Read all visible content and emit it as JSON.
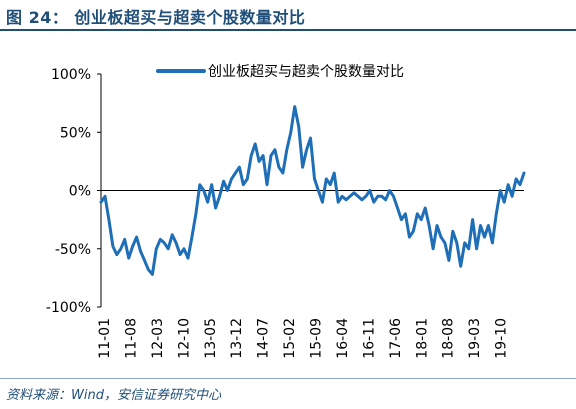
{
  "figure": {
    "title": "图 24：  创业板超买与超卖个股数量对比",
    "source": "资料来源：Wind，安信证券研究中心"
  },
  "colors": {
    "series": "#1f6fb8",
    "axis": "#000000",
    "title": "#1f4e79"
  },
  "chart_data": {
    "type": "line",
    "title": "",
    "xlabel": "",
    "ylabel": "",
    "ylim": [
      -100,
      100
    ],
    "yticks": [
      100,
      50,
      0,
      -50,
      -100
    ],
    "ytick_labels": [
      "100%",
      "50%",
      "0%",
      "-50%",
      "-100%"
    ],
    "xticks": [
      "11-01",
      "11-08",
      "12-03",
      "12-10",
      "13-05",
      "13-12",
      "14-07",
      "15-02",
      "15-09",
      "16-04",
      "16-11",
      "17-06",
      "18-01",
      "18-08",
      "19-03",
      "19-10"
    ],
    "grid": false,
    "legend": "top",
    "series": [
      {
        "name": "创业板超买与超卖个股数量对比",
        "x": [
          "11-01",
          "11-02",
          "11-03",
          "11-04",
          "11-05",
          "11-06",
          "11-07",
          "11-08",
          "11-09",
          "11-10",
          "11-11",
          "11-12",
          "12-01",
          "12-02",
          "12-03",
          "12-04",
          "12-05",
          "12-06",
          "12-07",
          "12-08",
          "12-09",
          "12-10",
          "12-11",
          "12-12",
          "13-01",
          "13-02",
          "13-03",
          "13-04",
          "13-05",
          "13-06",
          "13-07",
          "13-08",
          "13-09",
          "13-10",
          "13-11",
          "13-12",
          "14-01",
          "14-02",
          "14-03",
          "14-04",
          "14-05",
          "14-06",
          "14-07",
          "14-08",
          "14-09",
          "14-10",
          "14-11",
          "14-12",
          "15-01",
          "15-02",
          "15-03",
          "15-04",
          "15-05",
          "15-06",
          "15-07",
          "15-08",
          "15-09",
          "15-10",
          "15-11",
          "15-12",
          "16-01",
          "16-02",
          "16-03",
          "16-04",
          "16-05",
          "16-06",
          "16-07",
          "16-08",
          "16-09",
          "16-10",
          "16-11",
          "16-12",
          "17-01",
          "17-02",
          "17-03",
          "17-04",
          "17-05",
          "17-06",
          "17-07",
          "17-08",
          "17-09",
          "17-10",
          "17-11",
          "17-12",
          "18-01",
          "18-02",
          "18-03",
          "18-04",
          "18-05",
          "18-06",
          "18-07",
          "18-08",
          "18-09",
          "18-10",
          "18-11",
          "18-12",
          "19-01",
          "19-02",
          "19-03",
          "19-04",
          "19-05",
          "19-06",
          "19-07",
          "19-08",
          "19-09",
          "19-10",
          "19-11",
          "19-12"
        ],
        "values": [
          -10,
          -5,
          -25,
          -48,
          -55,
          -50,
          -42,
          -58,
          -48,
          -40,
          -52,
          -60,
          -68,
          -72,
          -50,
          -42,
          -45,
          -50,
          -38,
          -45,
          -55,
          -50,
          -58,
          -40,
          -20,
          5,
          0,
          -10,
          5,
          -15,
          -5,
          8,
          0,
          10,
          15,
          20,
          5,
          10,
          30,
          40,
          25,
          30,
          5,
          30,
          35,
          20,
          15,
          35,
          50,
          72,
          55,
          20,
          35,
          45,
          10,
          0,
          -10,
          10,
          5,
          15,
          -10,
          -5,
          -8,
          -5,
          -2,
          -5,
          -8,
          -5,
          0,
          -10,
          -5,
          -5,
          -8,
          0,
          -5,
          -15,
          -25,
          -20,
          -40,
          -35,
          -20,
          -25,
          -15,
          -30,
          -50,
          -30,
          -40,
          -45,
          -60,
          -35,
          -45,
          -65,
          -45,
          -50,
          -25,
          -50,
          -30,
          -40,
          -30,
          -45,
          -20,
          0,
          -10,
          5,
          -5,
          10,
          5,
          15
        ]
      }
    ]
  }
}
